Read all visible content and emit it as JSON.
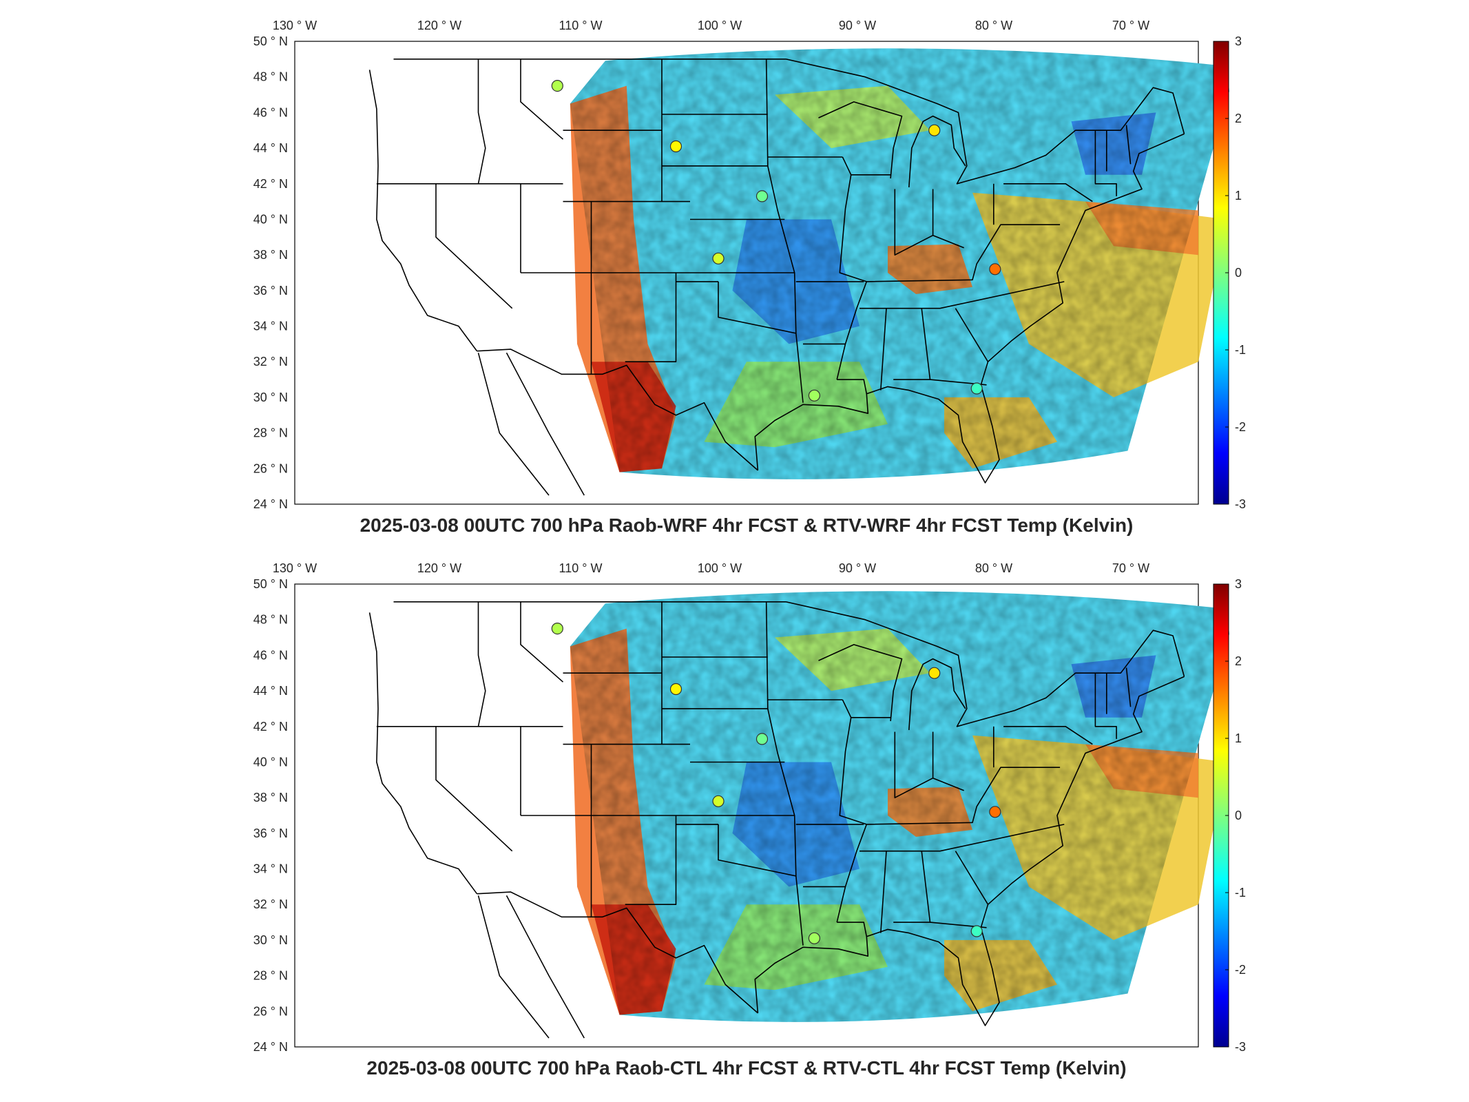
{
  "figure": {
    "panels": [
      {
        "title": "2025-03-08 00UTC 700 hPa Raob-WRF 4hr FCST & RTV-WRF 4hr FCST Temp (Kelvin)",
        "lon_ticks": [
          "130",
          "120",
          "110",
          "100",
          "90",
          "80",
          "70"
        ],
        "lat_ticks": [
          "50",
          "48",
          "46",
          "44",
          "42",
          "40",
          "38",
          "36",
          "34",
          "32",
          "30",
          "28",
          "26",
          "24"
        ],
        "colorbar_ticks": [
          "3",
          "2",
          "1",
          "0",
          "-1",
          "-2",
          "-3"
        ],
        "raob_markers": [
          {
            "lon": -111.4,
            "lat": 47.5,
            "value": 0.3
          },
          {
            "lon": -103.0,
            "lat": 44.1,
            "value": 0.8
          },
          {
            "lon": -96.9,
            "lat": 41.3,
            "value": -0.1
          },
          {
            "lon": -100.0,
            "lat": 37.8,
            "value": 0.5
          },
          {
            "lon": -84.7,
            "lat": 45.0,
            "value": 0.9
          },
          {
            "lon": -80.4,
            "lat": 37.2,
            "value": 1.6
          },
          {
            "lon": -93.2,
            "lat": 30.1,
            "value": 0.2
          },
          {
            "lon": -81.7,
            "lat": 30.5,
            "value": -0.4
          }
        ]
      },
      {
        "title": "2025-03-08 00UTC 700 hPa Raob-CTL 4hr FCST & RTV-CTL 4hr FCST Temp (Kelvin)",
        "lon_ticks": [
          "130",
          "120",
          "110",
          "100",
          "90",
          "80",
          "70"
        ],
        "lat_ticks": [
          "50",
          "48",
          "46",
          "44",
          "42",
          "40",
          "38",
          "36",
          "34",
          "32",
          "30",
          "28",
          "26",
          "24"
        ],
        "colorbar_ticks": [
          "3",
          "2",
          "1",
          "0",
          "-1",
          "-2",
          "-3"
        ],
        "raob_markers": [
          {
            "lon": -111.4,
            "lat": 47.5,
            "value": 0.3
          },
          {
            "lon": -103.0,
            "lat": 44.1,
            "value": 0.8
          },
          {
            "lon": -96.9,
            "lat": 41.3,
            "value": -0.1
          },
          {
            "lon": -100.0,
            "lat": 37.8,
            "value": 0.5
          },
          {
            "lon": -84.7,
            "lat": 45.0,
            "value": 0.9
          },
          {
            "lon": -80.4,
            "lat": 37.2,
            "value": 1.6
          },
          {
            "lon": -93.2,
            "lat": 30.1,
            "value": 0.2
          },
          {
            "lon": -81.7,
            "lat": 30.5,
            "value": -0.4
          }
        ]
      }
    ],
    "lon_hemisphere": "W",
    "lat_hemisphere": "N",
    "degree_symbol": "°",
    "colormap": "jet",
    "colorbar_range": [
      -3,
      3
    ]
  }
}
